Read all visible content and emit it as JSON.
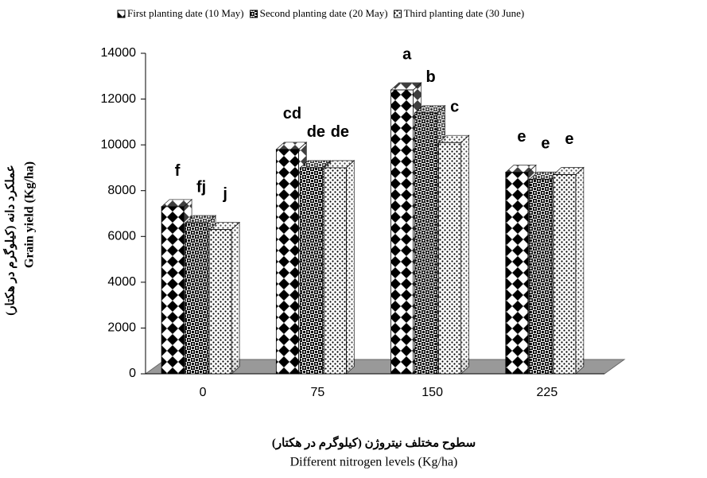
{
  "chart_data": {
    "type": "bar3d",
    "y_label": [
      "عملکرد دانه (کیلوگرم در هکتار)",
      "Grain yield (Kg/ha)"
    ],
    "x_label": [
      "سطوح مختلف نیتروژن (کیلوگرم در هکتار)",
      "Different nitrogen levels (Kg/ha)"
    ],
    "categories": [
      "0",
      "75",
      "150",
      "225"
    ],
    "series": [
      {
        "name": "First planting date (10 May)",
        "values": [
          7300,
          9800,
          12400,
          8800
        ],
        "letters": [
          "f",
          "cd",
          "a",
          "e"
        ]
      },
      {
        "name": "Second planting date (20 May)",
        "values": [
          6600,
          9000,
          11400,
          8500
        ],
        "letters": [
          "fj",
          "de",
          "b",
          "e"
        ]
      },
      {
        "name": "Third planting date (30 June)",
        "values": [
          6300,
          9000,
          10100,
          8700
        ],
        "letters": [
          "j",
          "de",
          "c",
          "e"
        ]
      }
    ],
    "ylim": [
      0,
      14000
    ],
    "yticks": [
      0,
      2000,
      4000,
      6000,
      8000,
      10000,
      12000,
      14000
    ],
    "legend": "top"
  }
}
